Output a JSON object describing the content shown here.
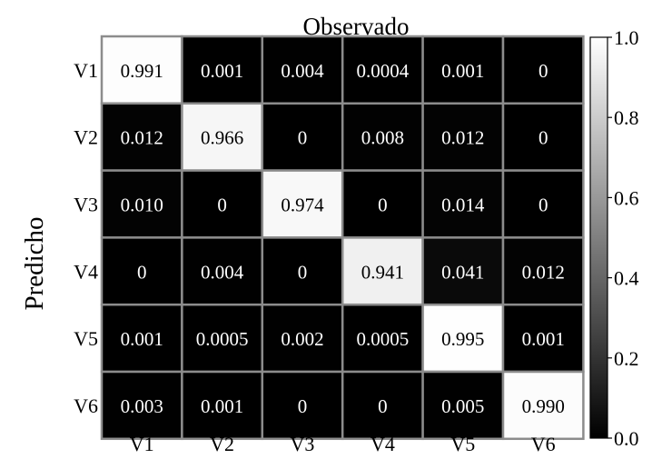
{
  "chart_data": {
    "type": "heatmap",
    "title": "Observado",
    "xlabel": "",
    "ylabel": "Predicho",
    "x_categories": [
      "V1",
      "V2",
      "V3",
      "V4",
      "V5",
      "V6"
    ],
    "y_categories": [
      "V1",
      "V2",
      "V3",
      "V4",
      "V5",
      "V6"
    ],
    "values": [
      [
        0.991,
        0.001,
        0.004,
        0.0004,
        0.001,
        0
      ],
      [
        0.012,
        0.966,
        0,
        0.008,
        0.012,
        0
      ],
      [
        0.01,
        0,
        0.974,
        0,
        0.014,
        0
      ],
      [
        0,
        0.004,
        0,
        0.941,
        0.041,
        0.012
      ],
      [
        0.001,
        0.0005,
        0.002,
        0.0005,
        0.995,
        0.001
      ],
      [
        0.003,
        0.001,
        0,
        0,
        0.005,
        0.99
      ]
    ],
    "cell_labels": [
      [
        "0.991",
        "0.001",
        "0.004",
        "0.0004",
        "0.001",
        "0"
      ],
      [
        "0.012",
        "0.966",
        "0",
        "0.008",
        "0.012",
        "0"
      ],
      [
        "0.010",
        "0",
        "0.974",
        "0",
        "0.014",
        "0"
      ],
      [
        "0",
        "0.004",
        "0",
        "0.941",
        "0.041",
        "0.012"
      ],
      [
        "0.001",
        "0.0005",
        "0.002",
        "0.0005",
        "0.995",
        "0.001"
      ],
      [
        "0.003",
        "0.001",
        "0",
        "0",
        "0.005",
        "0.990"
      ]
    ],
    "colorbar": {
      "range": [
        0.0,
        1.0
      ],
      "ticks": [
        0.0,
        0.2,
        0.4,
        0.6,
        0.8,
        1.0
      ],
      "tick_labels": [
        "0.0",
        "0.2",
        "0.4",
        "0.6",
        "0.8",
        "1.0"
      ],
      "colormap": "grayscale (black = 0, white = 1)"
    },
    "grid": true,
    "colors": {
      "low": "#000000",
      "high": "#ffffff",
      "grid": "#8c8c8c"
    }
  }
}
